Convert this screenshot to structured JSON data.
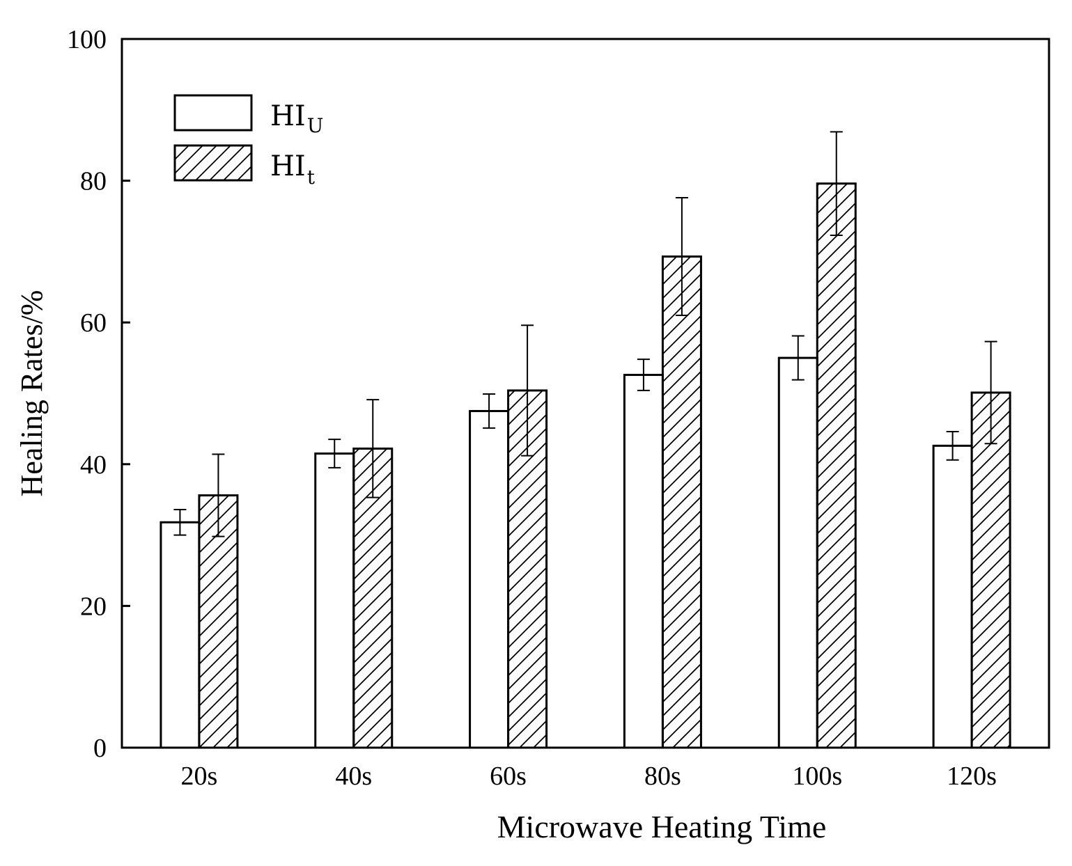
{
  "chart_data": {
    "type": "bar",
    "title": "",
    "xlabel": "Microwave Heating Time",
    "ylabel": "Healing Rates/%",
    "ylim": [
      0,
      100
    ],
    "yticks": [
      0,
      20,
      40,
      60,
      80,
      100
    ],
    "grid": false,
    "legend_position": "top-left",
    "categories": [
      "20s",
      "40s",
      "60s",
      "80s",
      "100s",
      "120s"
    ],
    "series": [
      {
        "name": "HI_U",
        "legend_main": "HI",
        "legend_sub": "U",
        "pattern": "none",
        "values": [
          31.8,
          41.5,
          47.5,
          52.6,
          55.0,
          42.6
        ],
        "errors": [
          1.8,
          2.0,
          2.4,
          2.2,
          3.1,
          2.0
        ]
      },
      {
        "name": "HI_t",
        "legend_main": "HI",
        "legend_sub": "t",
        "pattern": "hatch",
        "values": [
          35.6,
          42.2,
          50.4,
          69.3,
          79.6,
          50.1
        ],
        "errors": [
          5.8,
          6.9,
          9.2,
          8.3,
          7.3,
          7.2
        ]
      }
    ]
  }
}
